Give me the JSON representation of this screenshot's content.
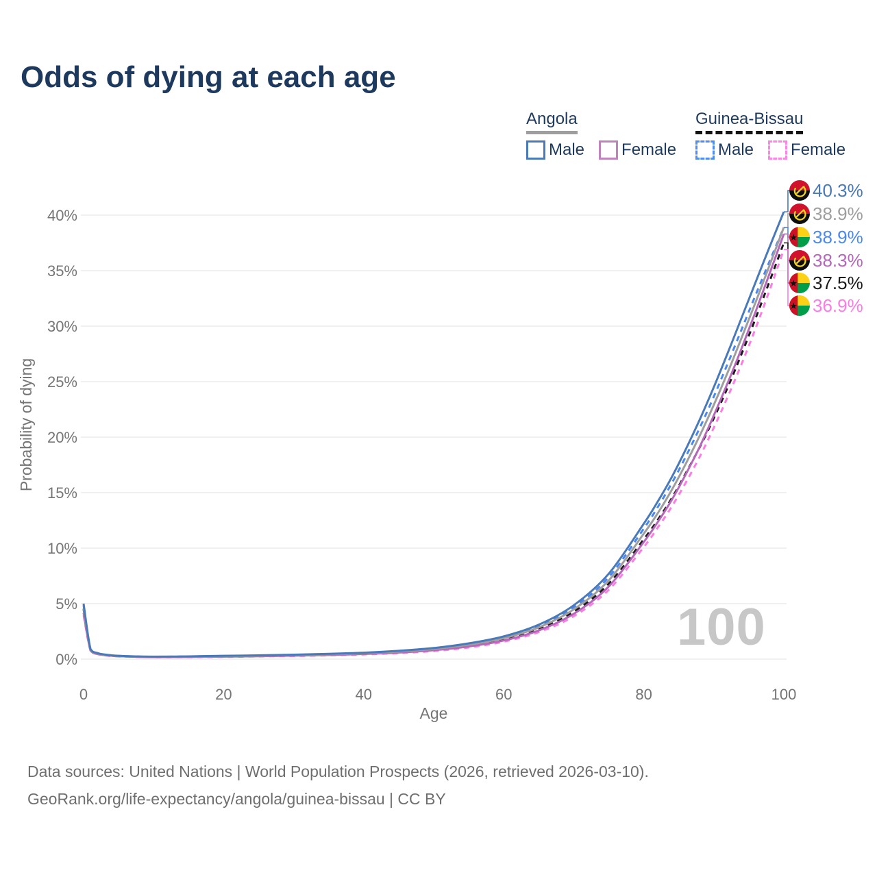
{
  "title": "Odds of dying at each age",
  "legend": {
    "groups": [
      {
        "label": "Angola",
        "line_style": "solid",
        "underline_color": "#9e9e9e",
        "items": [
          {
            "label": "Male",
            "color": "#4a79b8"
          },
          {
            "label": "Female",
            "color": "#c084bd"
          }
        ]
      },
      {
        "label": "Guinea-Bissau",
        "line_style": "dashed",
        "underline_color": "#141414",
        "items": [
          {
            "label": "Male",
            "color": "#4f8bf5"
          },
          {
            "label": "Female",
            "color": "#fb86e4"
          }
        ]
      }
    ]
  },
  "watermark": "100",
  "end_labels": [
    {
      "flag": "#flag-angola",
      "country": "Angola",
      "series": "Angola Male",
      "value": "40.3%",
      "color": "#4a79b8"
    },
    {
      "flag": "#flag-angola",
      "country": "Angola",
      "series": "Angola Both sexes",
      "value": "38.9%",
      "color": "#9e9e9e"
    },
    {
      "flag": "#flag-gw",
      "country": "Guinea-Bissau",
      "series": "Guinea-Bissau Male",
      "value": "38.9%",
      "color": "#4b87f0"
    },
    {
      "flag": "#flag-angola",
      "country": "Angola",
      "series": "Angola Female",
      "value": "38.3%",
      "color": "#b567b9"
    },
    {
      "flag": "#flag-gw",
      "country": "Guinea-Bissau",
      "series": "Guinea-Bissau Both sexes",
      "value": "37.5%",
      "color": "#1a1a1a"
    },
    {
      "flag": "#flag-gw",
      "country": "Guinea-Bissau",
      "series": "Guinea-Bissau Female",
      "value": "36.9%",
      "color": "#fb7de4"
    }
  ],
  "footer": {
    "line1": "Data sources: United Nations | World Population Prospects (2026, retrieved 2026-03-10).",
    "line2": "GeoRank.org/life-expectancy/angola/guinea-bissau | CC BY"
  },
  "chart_data": {
    "type": "line",
    "title": "Odds of dying at each age",
    "xlabel": "Age",
    "ylabel": "Probability of dying",
    "xlim": [
      0,
      100
    ],
    "ylim_percent": [
      0,
      42
    ],
    "grid": true,
    "legend_position": "top-right",
    "x_ticks": [
      0,
      20,
      40,
      60,
      80,
      100
    ],
    "y_ticks_percent": [
      0,
      5,
      10,
      15,
      20,
      25,
      30,
      35,
      40
    ],
    "x": [
      0,
      1,
      2,
      3,
      5,
      10,
      15,
      20,
      25,
      30,
      35,
      40,
      45,
      50,
      55,
      60,
      65,
      70,
      75,
      80,
      82,
      84,
      86,
      88,
      90,
      92,
      94,
      96,
      98,
      100
    ],
    "series": [
      {
        "name": "Angola Male",
        "country": "Angola",
        "sex": "Male",
        "style": "solid",
        "color": "#4a79b8",
        "end_label": "40.3%",
        "values_percent": [
          5.0,
          0.9,
          0.55,
          0.42,
          0.3,
          0.22,
          0.25,
          0.3,
          0.34,
          0.4,
          0.48,
          0.58,
          0.75,
          1.0,
          1.42,
          2.05,
          3.1,
          4.85,
          7.7,
          12.2,
          14.2,
          16.4,
          18.9,
          21.6,
          24.5,
          27.6,
          30.8,
          34.0,
          37.2,
          40.3
        ]
      },
      {
        "name": "Angola Both sexes",
        "country": "Angola",
        "sex": "Both",
        "style": "solid",
        "color": "#9e9e9e",
        "end_label": "38.9%",
        "values_percent": [
          4.6,
          0.84,
          0.51,
          0.39,
          0.28,
          0.2,
          0.22,
          0.26,
          0.3,
          0.36,
          0.43,
          0.53,
          0.68,
          0.91,
          1.3,
          1.89,
          2.86,
          4.48,
          7.1,
          11.3,
          13.15,
          15.25,
          17.6,
          20.15,
          22.9,
          25.85,
          29.0,
          32.2,
          35.55,
          38.9
        ]
      },
      {
        "name": "Guinea-Bissau Male",
        "country": "Guinea-Bissau",
        "sex": "Male",
        "style": "dashed",
        "color": "#4b87f0",
        "end_label": "38.9%",
        "values_percent": [
          4.85,
          0.87,
          0.53,
          0.4,
          0.29,
          0.21,
          0.24,
          0.28,
          0.32,
          0.38,
          0.46,
          0.55,
          0.71,
          0.95,
          1.35,
          1.97,
          2.98,
          4.66,
          7.4,
          11.75,
          13.7,
          15.85,
          18.25,
          20.85,
          23.65,
          26.65,
          29.75,
          32.85,
          35.9,
          38.9
        ]
      },
      {
        "name": "Angola Female",
        "country": "Angola",
        "sex": "Female",
        "style": "solid",
        "color": "#b567b9",
        "end_label": "38.3%",
        "values_percent": [
          4.15,
          0.78,
          0.47,
          0.36,
          0.26,
          0.18,
          0.2,
          0.22,
          0.26,
          0.31,
          0.37,
          0.46,
          0.59,
          0.8,
          1.14,
          1.68,
          2.58,
          4.08,
          6.55,
          10.55,
          12.35,
          14.35,
          16.65,
          19.15,
          21.95,
          24.9,
          28.05,
          31.35,
          34.8,
          38.3
        ]
      },
      {
        "name": "Guinea-Bissau Both sexes",
        "country": "Guinea-Bissau",
        "sex": "Both",
        "style": "dashed",
        "color": "#1a1a1a",
        "end_label": "37.5%",
        "values_percent": [
          4.5,
          0.81,
          0.49,
          0.37,
          0.27,
          0.19,
          0.21,
          0.24,
          0.28,
          0.33,
          0.4,
          0.49,
          0.63,
          0.85,
          1.22,
          1.78,
          2.71,
          4.26,
          6.8,
          10.8,
          12.55,
          14.5,
          16.75,
          19.1,
          21.7,
          24.5,
          27.55,
          30.75,
          34.1,
          37.5
        ]
      },
      {
        "name": "Guinea-Bissau Female",
        "country": "Guinea-Bissau",
        "sex": "Female",
        "style": "dashed",
        "color": "#fb7de4",
        "end_label": "36.9%",
        "values_percent": [
          3.95,
          0.75,
          0.45,
          0.34,
          0.24,
          0.17,
          0.18,
          0.2,
          0.24,
          0.28,
          0.34,
          0.42,
          0.54,
          0.73,
          1.05,
          1.57,
          2.43,
          3.87,
          6.25,
          10.1,
          11.85,
          13.75,
          15.9,
          18.25,
          20.85,
          23.65,
          26.65,
          29.85,
          33.3,
          36.9
        ]
      }
    ]
  }
}
